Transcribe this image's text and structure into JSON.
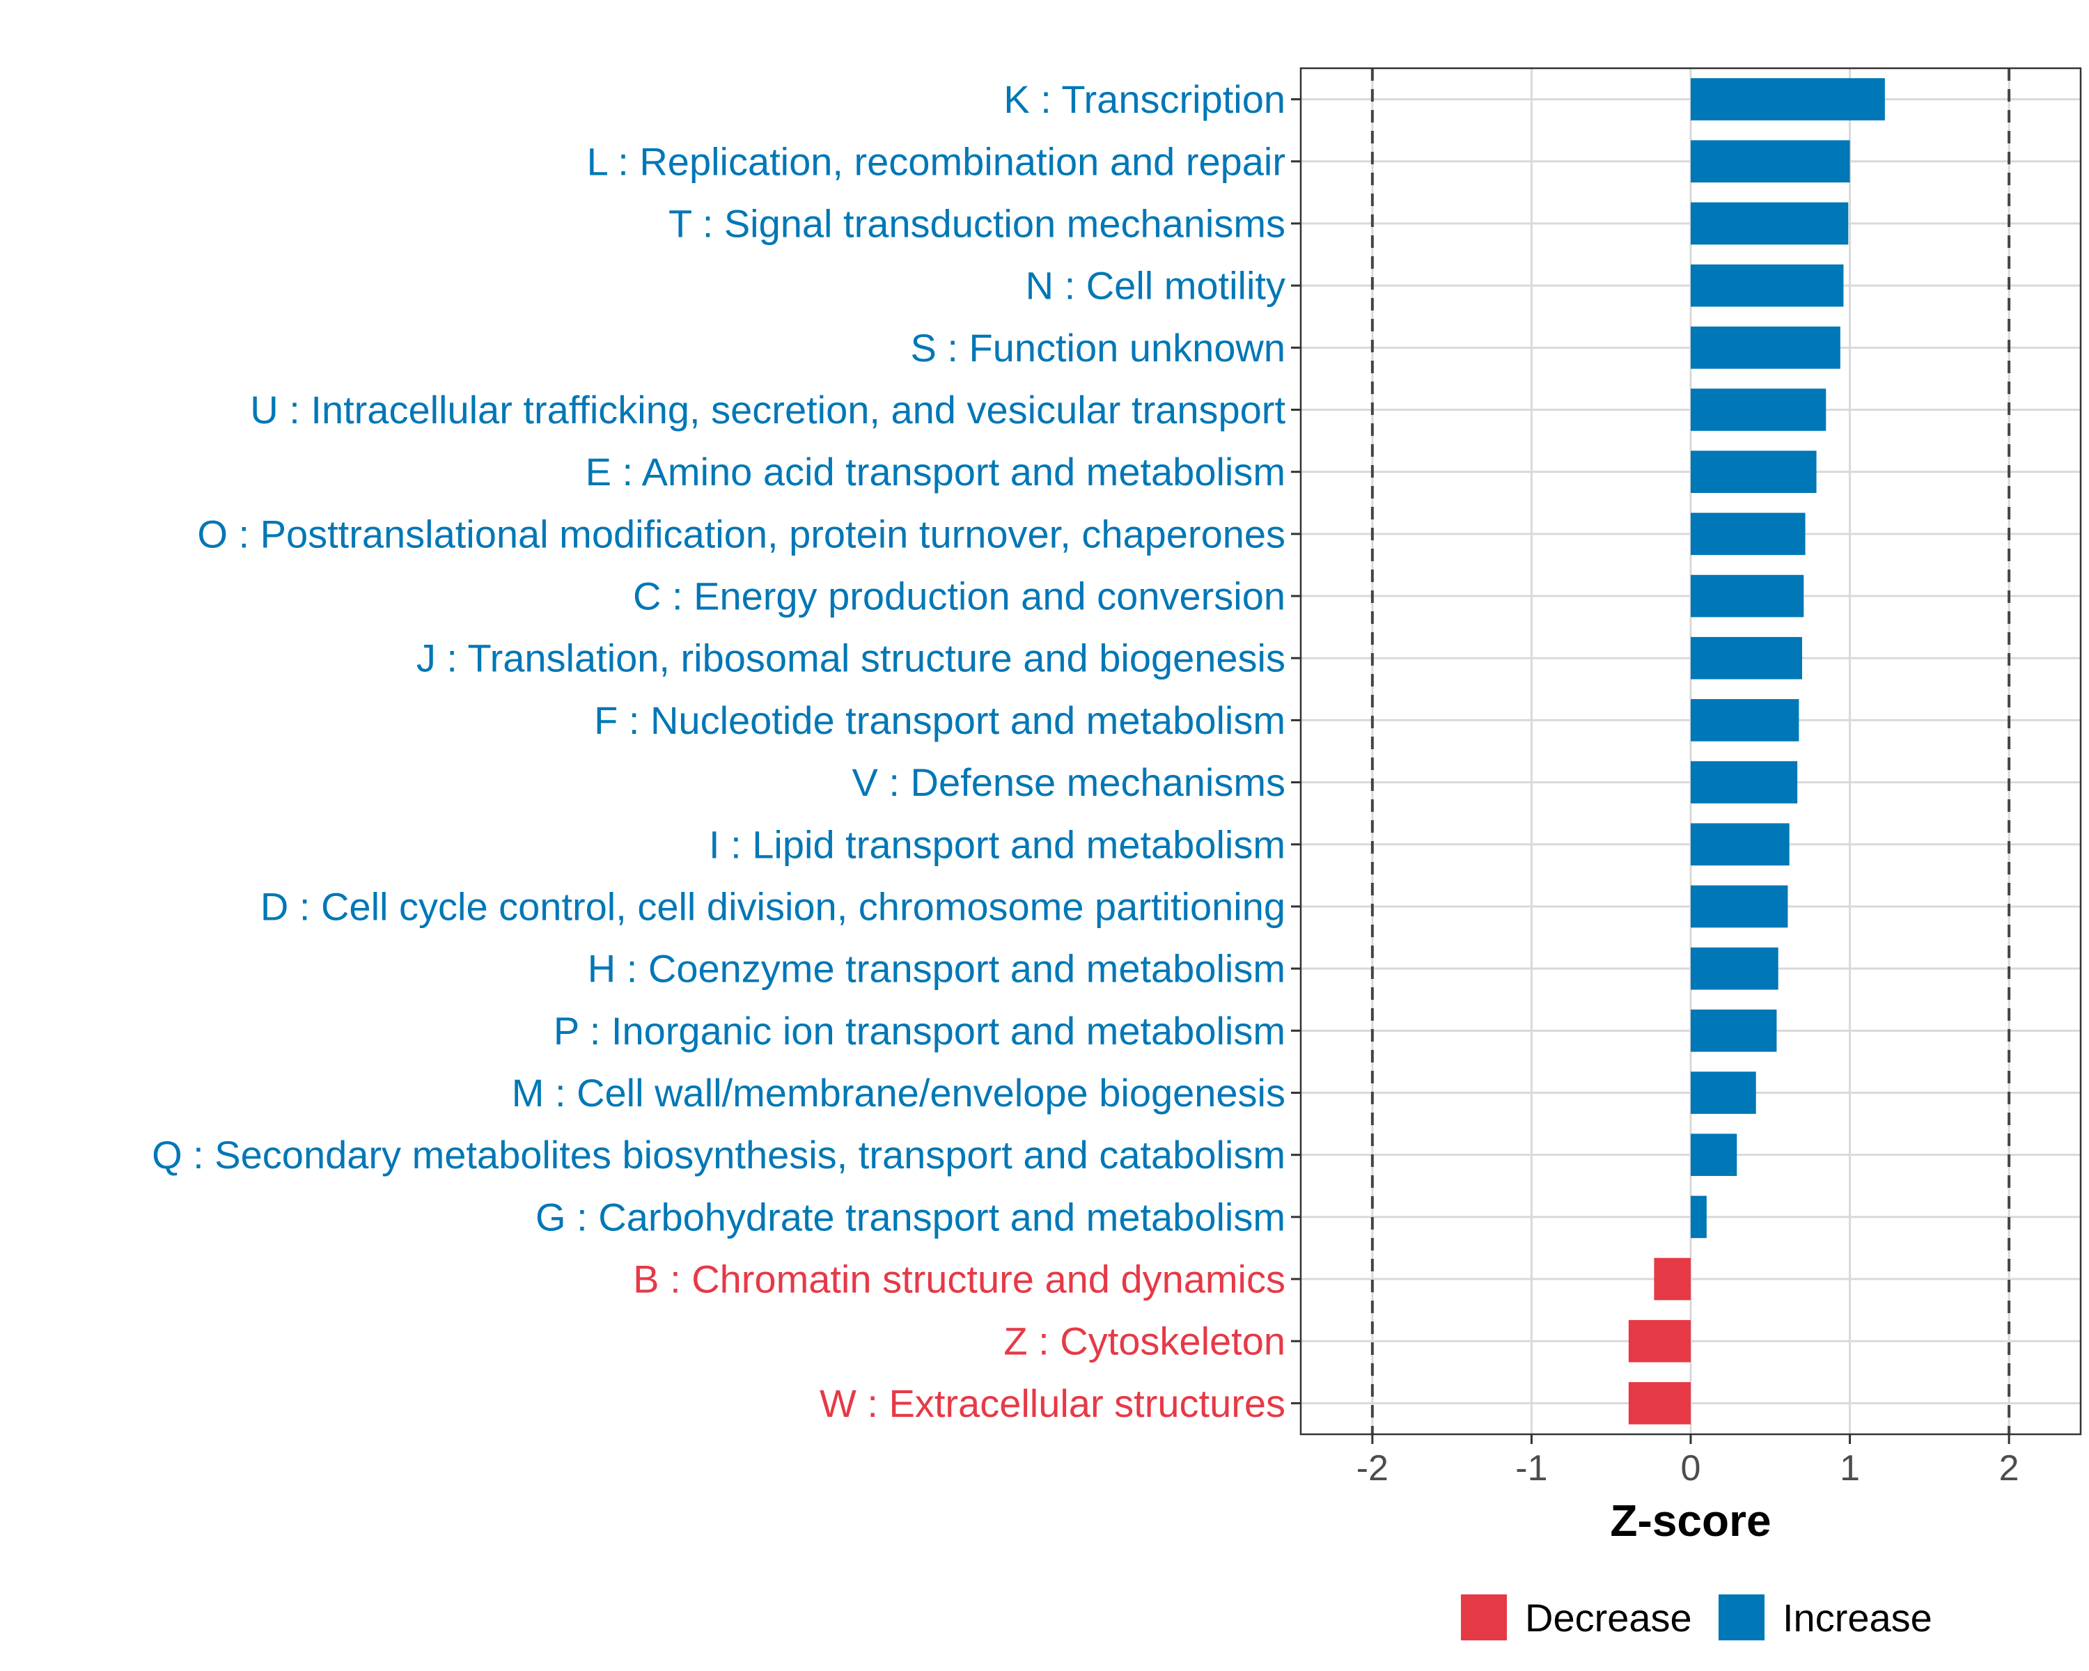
{
  "chart_data": {
    "type": "bar",
    "orientation": "horizontal",
    "xlabel": "Z-score",
    "xlim": [
      -2.45,
      2.45
    ],
    "xticks": [
      -2,
      -1,
      0,
      1,
      2
    ],
    "xtick_labels": [
      "-2",
      "-1",
      "0",
      "1",
      "2"
    ],
    "reference_lines": [
      -2,
      2
    ],
    "grid": true,
    "legend_position": "bottom",
    "colors": {
      "Decrease": "#e63946",
      "Increase": "#0077b6"
    },
    "legend": [
      {
        "name": "Decrease",
        "color": "#e63946"
      },
      {
        "name": "Increase",
        "color": "#0077b6"
      }
    ],
    "categories": [
      "K : Transcription",
      "L : Replication, recombination and repair",
      "T : Signal transduction mechanisms",
      "N : Cell motility",
      "S : Function unknown",
      "U : Intracellular trafficking, secretion, and vesicular transport",
      "E : Amino acid transport and metabolism",
      "O : Posttranslational modification, protein turnover, chaperones",
      "C : Energy production and conversion",
      "J : Translation, ribosomal structure and biogenesis",
      "F : Nucleotide transport and metabolism",
      "V : Defense mechanisms",
      "I : Lipid transport and metabolism",
      "D : Cell cycle control, cell division, chromosome partitioning",
      "H : Coenzyme transport and metabolism",
      "P : Inorganic ion transport and metabolism",
      "M : Cell wall/membrane/envelope biogenesis",
      "Q : Secondary metabolites biosynthesis, transport and catabolism",
      "G : Carbohydrate transport and metabolism",
      "B : Chromatin structure and dynamics",
      "Z : Cytoskeleton",
      "W : Extracellular structures"
    ],
    "values": [
      1.22,
      1.0,
      0.99,
      0.96,
      0.94,
      0.85,
      0.79,
      0.72,
      0.71,
      0.7,
      0.68,
      0.67,
      0.62,
      0.61,
      0.55,
      0.54,
      0.41,
      0.29,
      0.1,
      -0.23,
      -0.39,
      -0.39
    ],
    "directions": [
      "Increase",
      "Increase",
      "Increase",
      "Increase",
      "Increase",
      "Increase",
      "Increase",
      "Increase",
      "Increase",
      "Increase",
      "Increase",
      "Increase",
      "Increase",
      "Increase",
      "Increase",
      "Increase",
      "Increase",
      "Increase",
      "Increase",
      "Decrease",
      "Decrease",
      "Decrease"
    ]
  }
}
